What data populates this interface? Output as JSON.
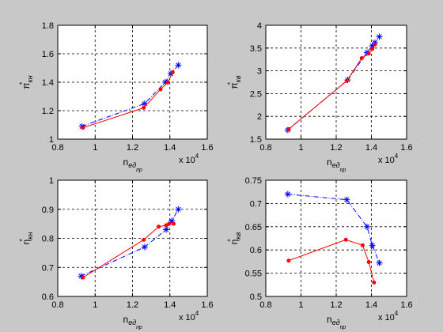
{
  "chart_data": [
    {
      "type": "line",
      "xlabel": "n",
      "xlabel_sub": "ед",
      "xlabel_subsub": "пр",
      "ylabel": "π",
      "ylabel_sup": "*",
      "ylabel_sub": "кн",
      "xlim": [
        0.8,
        1.6
      ],
      "ylim": [
        1.0,
        1.8
      ],
      "xticks": [
        "0.8",
        "1",
        "1.2",
        "1.4",
        "1.6"
      ],
      "yticks": [
        "1",
        "1.2",
        "1.4",
        "1.6",
        "1.8"
      ],
      "x_multiplier": "x 10",
      "x_multiplier_exp": "4",
      "grid": true,
      "series": [
        {
          "color": "#0000ff",
          "marker": "star",
          "style": "dashdot",
          "x": [
            0.93,
            1.265,
            1.375,
            1.405,
            1.445
          ],
          "y": [
            1.09,
            1.25,
            1.4,
            1.46,
            1.52
          ]
        },
        {
          "color": "#ff0000",
          "marker": "dot",
          "style": "solid",
          "x": [
            0.935,
            1.26,
            1.35,
            1.39,
            1.415
          ],
          "y": [
            1.08,
            1.22,
            1.35,
            1.4,
            1.47
          ]
        }
      ]
    },
    {
      "type": "line",
      "xlabel": "n",
      "xlabel_sub": "ед",
      "xlabel_subsub": "пр",
      "ylabel": "π",
      "ylabel_sup": "*",
      "ylabel_sub": "кв",
      "xlim": [
        0.8,
        1.6
      ],
      "ylim": [
        1.5,
        4.0
      ],
      "xticks": [
        "0.8",
        "1",
        "1.2",
        "1.4",
        "1.6"
      ],
      "yticks": [
        "1.5",
        "2",
        "2.5",
        "3",
        "3.5",
        "4"
      ],
      "x_multiplier": "x 10",
      "x_multiplier_exp": "4",
      "grid": true,
      "series": [
        {
          "color": "#0000ff",
          "marker": "star",
          "style": "dashdot",
          "x": [
            0.925,
            1.265,
            1.375,
            1.405,
            1.42,
            1.445
          ],
          "y": [
            1.7,
            2.8,
            3.4,
            3.55,
            3.62,
            3.75
          ]
        },
        {
          "color": "#ff0000",
          "marker": "dot",
          "style": "solid",
          "x": [
            0.93,
            1.26,
            1.345,
            1.385,
            1.405,
            1.42
          ],
          "y": [
            1.72,
            2.78,
            3.28,
            3.38,
            3.48,
            3.58
          ]
        }
      ]
    },
    {
      "type": "line",
      "xlabel": "n",
      "xlabel_sub": "ед",
      "xlabel_subsub": "пр",
      "ylabel": "η",
      "ylabel_sup": "*",
      "ylabel_sub": "кн",
      "xlim": [
        0.8,
        1.6
      ],
      "ylim": [
        0.6,
        1.0
      ],
      "xticks": [
        "0.8",
        "1",
        "1.2",
        "1.4",
        "1.6"
      ],
      "yticks": [
        "0.6",
        "0.7",
        "0.8",
        "0.9",
        "1"
      ],
      "x_multiplier": "x 10",
      "x_multiplier_exp": "4",
      "grid": true,
      "series": [
        {
          "color": "#0000ff",
          "marker": "star",
          "style": "dashdot",
          "x": [
            0.925,
            1.265,
            1.38,
            1.41,
            1.445
          ],
          "y": [
            0.67,
            0.77,
            0.83,
            0.86,
            0.9
          ]
        },
        {
          "color": "#ff0000",
          "marker": "dot",
          "style": "solid",
          "x": [
            0.935,
            1.26,
            1.34,
            1.38,
            1.395,
            1.42
          ],
          "y": [
            0.665,
            0.795,
            0.84,
            0.845,
            0.85,
            0.85
          ]
        }
      ]
    },
    {
      "type": "line",
      "xlabel": "n",
      "xlabel_sub": "ед",
      "xlabel_subsub": "пр",
      "ylabel": "η",
      "ylabel_sup": "*",
      "ylabel_sub": "кв",
      "xlim": [
        0.8,
        1.6
      ],
      "ylim": [
        0.5,
        0.75
      ],
      "xticks": [
        "0.8",
        "1",
        "1.2",
        "1.4",
        "1.6"
      ],
      "yticks": [
        "0.5",
        "0.55",
        "0.6",
        "0.65",
        "0.7",
        "0.75"
      ],
      "x_multiplier": "x 10",
      "x_multiplier_exp": "4",
      "grid": true,
      "series": [
        {
          "color": "#0000ff",
          "marker": "star",
          "style": "dashdot",
          "x": [
            0.925,
            1.26,
            1.375,
            1.405,
            1.445
          ],
          "y": [
            0.72,
            0.708,
            0.65,
            0.61,
            0.572
          ]
        },
        {
          "color": "#ff0000",
          "marker": "dot",
          "style": "solid",
          "x": [
            0.93,
            1.255,
            1.35,
            1.385,
            1.415
          ],
          "y": [
            0.577,
            0.622,
            0.61,
            0.574,
            0.53
          ]
        }
      ]
    }
  ]
}
